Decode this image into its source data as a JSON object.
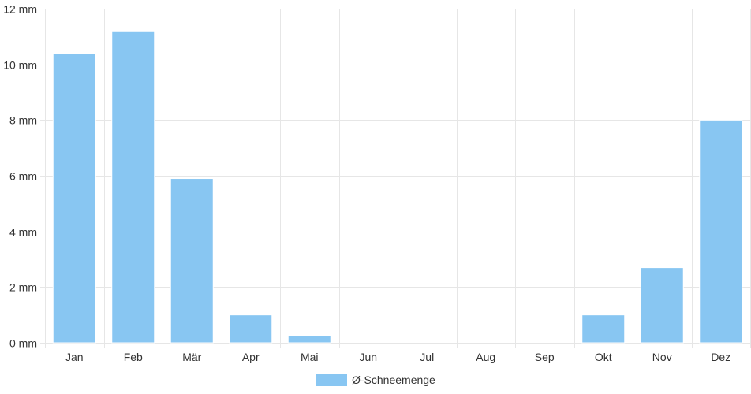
{
  "chart_data": {
    "type": "bar",
    "title": "",
    "xlabel": "",
    "ylabel": "",
    "categories": [
      "Jan",
      "Feb",
      "Mär",
      "Apr",
      "Mai",
      "Jun",
      "Jul",
      "Aug",
      "Sep",
      "Okt",
      "Nov",
      "Dez"
    ],
    "series": [
      {
        "name": "Ø-Schneemenge",
        "values": [
          10.4,
          11.2,
          5.9,
          1.0,
          0.25,
          0,
          0,
          0,
          0,
          1.0,
          2.7,
          8.0
        ],
        "color": "#88c6f2"
      }
    ],
    "ylim": [
      0,
      12
    ],
    "yticks": [
      0,
      2,
      4,
      6,
      8,
      10,
      12
    ],
    "ytick_labels": [
      "0 mm",
      "2 mm",
      "4 mm",
      "6 mm",
      "8 mm",
      "10 mm",
      "12 mm"
    ],
    "grid": true,
    "legend_position": "bottom"
  }
}
